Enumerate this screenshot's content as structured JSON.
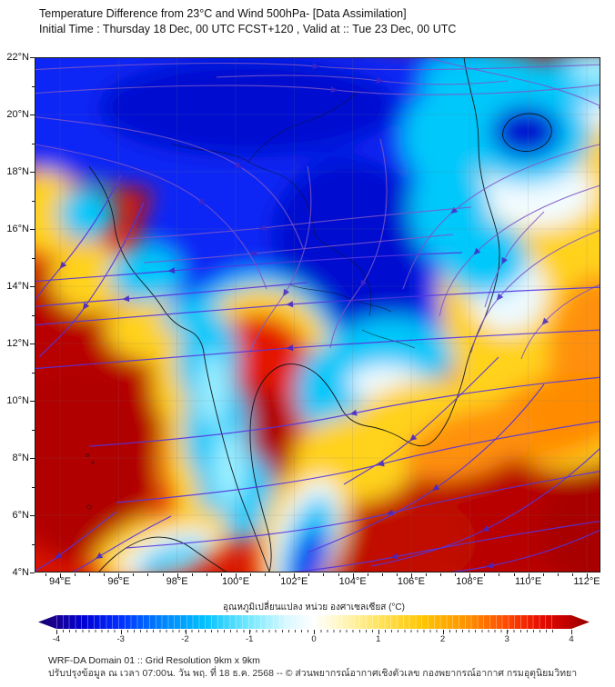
{
  "header": {
    "title_line1": "Temperature Difference from 23°C and Wind 500hPa- [Data Assimilation]",
    "title_line2": "Initial Time : Thursday 18 Dec, 00 UTC FCST+120 , Valid at ::  Tue 23 Dec, 00 UTC"
  },
  "map": {
    "lat_labels": [
      "22°N",
      "20°N",
      "18°N",
      "16°N",
      "14°N",
      "12°N",
      "10°N",
      "8°N",
      "6°N",
      "4°N"
    ],
    "lon_labels": [
      "94°E",
      "96°E",
      "98°E",
      "100°E",
      "102°E",
      "104°E",
      "106°E",
      "108°E",
      "110°E",
      "112°E"
    ]
  },
  "colorbar": {
    "label": "อุณหภูมิเปลี่ยนแปลง หน่วย องศาเซลเซียส (°C)",
    "ticks": [
      "-4",
      "-3",
      "-2",
      "-1",
      "0",
      "1",
      "2",
      "3",
      "4"
    ],
    "min": -4,
    "max": 4
  },
  "footer": {
    "line1": "WRF-DA Domain 01 :: Grid Resolution 9km x 9km",
    "line2": "ปรับปรุงข้อมูล ณ เวลา 07:00น. วัน พฤ. ที่ 18 ธ.ค. 2568 -- © ส่วนพยากรณ์อากาศเชิงตัวเลข กองพยากรณ์อากาศ กรมอุตุนิยมวิทยา"
  },
  "colors": {
    "negative_deep": "#0008d0",
    "negative": "#0726f5",
    "cyan": "#00c8fa",
    "neutral": "#ffffff",
    "warm_yellow": "#ffd21e",
    "orange": "#ff9010",
    "positive": "#d81400",
    "positive_deep": "#b00000",
    "streamline": "#5534e0",
    "arrow": "#4526c6"
  }
}
